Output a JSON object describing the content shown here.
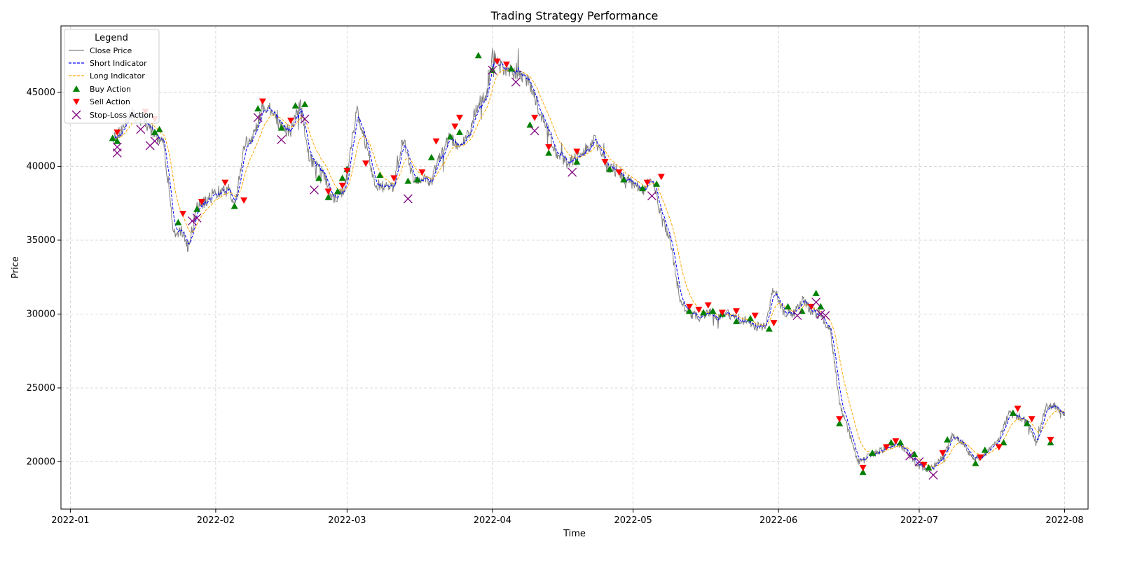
{
  "colors": {
    "close": "#808080",
    "short": "#0000ff",
    "long": "#ffa500",
    "buy": "#008000",
    "sell": "#ff0000",
    "stoploss": "#800080",
    "grid": "#cccccc"
  },
  "chart_data": {
    "type": "line",
    "title": "Trading Strategy Performance",
    "xlabel": "Time",
    "ylabel": "Price",
    "x_range": [
      "2021-12-30",
      "2022-08-06"
    ],
    "ylim": [
      16800,
      49500
    ],
    "x_ticks": [
      "2022-01-01",
      "2022-02-01",
      "2022-03-01",
      "2022-04-01",
      "2022-05-01",
      "2022-06-01",
      "2022-07-01",
      "2022-08-01"
    ],
    "x_tick_labels": [
      "2022-01",
      "2022-02",
      "2022-03",
      "2022-04",
      "2022-05",
      "2022-06",
      "2022-07",
      "2022-08"
    ],
    "y_ticks": [
      20000,
      25000,
      30000,
      35000,
      40000,
      45000
    ],
    "y_tick_labels": [
      "20000",
      "25000",
      "30000",
      "35000",
      "40000",
      "45000"
    ],
    "grid": true,
    "legend": {
      "title": "Legend",
      "placement": "top-left",
      "entries": [
        "Close Price",
        "Short Indicator",
        "Long Indicator",
        "Buy Action",
        "Sell Action",
        "Stop-Loss Action"
      ]
    },
    "price_path": [
      [
        "2022-01-10",
        41800
      ],
      [
        "2022-01-12",
        42500
      ],
      [
        "2022-01-14",
        43600
      ],
      [
        "2022-01-17",
        43000
      ],
      [
        "2022-01-19",
        42200
      ],
      [
        "2022-01-21",
        41400
      ],
      [
        "2022-01-23",
        35500
      ],
      [
        "2022-01-25",
        35600
      ],
      [
        "2022-01-26",
        34500
      ],
      [
        "2022-01-28",
        37200
      ],
      [
        "2022-02-01",
        38200
      ],
      [
        "2022-02-04",
        38500
      ],
      [
        "2022-02-05",
        37000
      ],
      [
        "2022-02-07",
        41400
      ],
      [
        "2022-02-09",
        42000
      ],
      [
        "2022-02-11",
        44000
      ],
      [
        "2022-02-13",
        43800
      ],
      [
        "2022-02-15",
        42600
      ],
      [
        "2022-02-17",
        42400
      ],
      [
        "2022-02-19",
        44300
      ],
      [
        "2022-02-21",
        40500
      ],
      [
        "2022-02-24",
        39500
      ],
      [
        "2022-02-26",
        37800
      ],
      [
        "2022-02-28",
        38200
      ],
      [
        "2022-03-01",
        39300
      ],
      [
        "2022-03-03",
        43800
      ],
      [
        "2022-03-05",
        41500
      ],
      [
        "2022-03-07",
        38800
      ],
      [
        "2022-03-09",
        38600
      ],
      [
        "2022-03-11",
        38700
      ],
      [
        "2022-03-13",
        42000
      ],
      [
        "2022-03-15",
        39200
      ],
      [
        "2022-03-17",
        39100
      ],
      [
        "2022-03-19",
        39000
      ],
      [
        "2022-03-21",
        40800
      ],
      [
        "2022-03-23",
        42000
      ],
      [
        "2022-03-25",
        41200
      ],
      [
        "2022-03-27",
        42300
      ],
      [
        "2022-03-29",
        44300
      ],
      [
        "2022-03-31",
        45000
      ],
      [
        "2022-04-01",
        47500
      ],
      [
        "2022-04-03",
        46600
      ],
      [
        "2022-04-05",
        46400
      ],
      [
        "2022-04-07",
        46200
      ],
      [
        "2022-04-09",
        45600
      ],
      [
        "2022-04-11",
        43800
      ],
      [
        "2022-04-13",
        42300
      ],
      [
        "2022-04-15",
        40600
      ],
      [
        "2022-04-17",
        40200
      ],
      [
        "2022-04-19",
        40500
      ],
      [
        "2022-04-21",
        41200
      ],
      [
        "2022-04-23",
        41800
      ],
      [
        "2022-04-25",
        40000
      ],
      [
        "2022-04-27",
        39800
      ],
      [
        "2022-04-29",
        39300
      ],
      [
        "2022-05-01",
        38800
      ],
      [
        "2022-05-03",
        38300
      ],
      [
        "2022-05-05",
        39300
      ],
      [
        "2022-05-07",
        36500
      ],
      [
        "2022-05-09",
        35000
      ],
      [
        "2022-05-11",
        31000
      ],
      [
        "2022-05-13",
        30000
      ],
      [
        "2022-05-15",
        29800
      ],
      [
        "2022-05-17",
        30200
      ],
      [
        "2022-05-19",
        29800
      ],
      [
        "2022-05-21",
        30100
      ],
      [
        "2022-05-23",
        29700
      ],
      [
        "2022-05-25",
        29600
      ],
      [
        "2022-05-27",
        29200
      ],
      [
        "2022-05-29",
        29100
      ],
      [
        "2022-05-31",
        31800
      ],
      [
        "2022-06-02",
        30200
      ],
      [
        "2022-06-04",
        29900
      ],
      [
        "2022-06-06",
        31000
      ],
      [
        "2022-06-08",
        30200
      ],
      [
        "2022-06-10",
        29900
      ],
      [
        "2022-06-12",
        29000
      ],
      [
        "2022-06-14",
        24000
      ],
      [
        "2022-06-16",
        22000
      ],
      [
        "2022-06-18",
        20000
      ],
      [
        "2022-06-20",
        20400
      ],
      [
        "2022-06-22",
        20600
      ],
      [
        "2022-06-24",
        21000
      ],
      [
        "2022-06-26",
        21200
      ],
      [
        "2022-06-28",
        20800
      ],
      [
        "2022-06-30",
        20000
      ],
      [
        "2022-07-02",
        19400
      ],
      [
        "2022-07-04",
        19600
      ],
      [
        "2022-07-06",
        20400
      ],
      [
        "2022-07-08",
        21800
      ],
      [
        "2022-07-10",
        21400
      ],
      [
        "2022-07-12",
        20400
      ],
      [
        "2022-07-14",
        20200
      ],
      [
        "2022-07-16",
        20800
      ],
      [
        "2022-07-18",
        21500
      ],
      [
        "2022-07-20",
        23200
      ],
      [
        "2022-07-22",
        23100
      ],
      [
        "2022-07-24",
        22700
      ],
      [
        "2022-07-26",
        21200
      ],
      [
        "2022-07-28",
        23700
      ],
      [
        "2022-07-30",
        23800
      ],
      [
        "2022-08-01",
        23100
      ]
    ],
    "buy_actions": [
      [
        "2022-01-10",
        41900
      ],
      [
        "2022-01-11",
        41700
      ],
      [
        "2022-01-19",
        42300
      ],
      [
        "2022-01-20",
        42500
      ],
      [
        "2022-01-24",
        36200
      ],
      [
        "2022-01-28",
        37100
      ],
      [
        "2022-02-05",
        37300
      ],
      [
        "2022-02-10",
        43900
      ],
      [
        "2022-02-15",
        42600
      ],
      [
        "2022-02-18",
        44100
      ],
      [
        "2022-02-20",
        44200
      ],
      [
        "2022-02-23",
        39200
      ],
      [
        "2022-02-25",
        37900
      ],
      [
        "2022-02-27",
        38300
      ],
      [
        "2022-02-28",
        39200
      ],
      [
        "2022-03-01",
        39800
      ],
      [
        "2022-03-08",
        39400
      ],
      [
        "2022-03-14",
        39000
      ],
      [
        "2022-03-16",
        39100
      ],
      [
        "2022-03-19",
        40600
      ],
      [
        "2022-03-23",
        42000
      ],
      [
        "2022-03-25",
        42300
      ],
      [
        "2022-03-29",
        47500
      ],
      [
        "2022-04-01",
        46500
      ],
      [
        "2022-04-05",
        46600
      ],
      [
        "2022-04-09",
        42800
      ],
      [
        "2022-04-13",
        40900
      ],
      [
        "2022-04-19",
        40300
      ],
      [
        "2022-04-26",
        39800
      ],
      [
        "2022-04-29",
        39100
      ],
      [
        "2022-05-03",
        38500
      ],
      [
        "2022-05-06",
        38800
      ],
      [
        "2022-05-13",
        30200
      ],
      [
        "2022-05-16",
        30100
      ],
      [
        "2022-05-18",
        30200
      ],
      [
        "2022-05-20",
        30000
      ],
      [
        "2022-05-23",
        29500
      ],
      [
        "2022-05-26",
        29700
      ],
      [
        "2022-05-30",
        29000
      ],
      [
        "2022-06-03",
        30500
      ],
      [
        "2022-06-06",
        30200
      ],
      [
        "2022-06-09",
        31400
      ],
      [
        "2022-06-10",
        30500
      ],
      [
        "2022-06-14",
        22600
      ],
      [
        "2022-06-19",
        19300
      ],
      [
        "2022-06-21",
        20600
      ],
      [
        "2022-06-25",
        21300
      ],
      [
        "2022-06-27",
        21300
      ],
      [
        "2022-06-30",
        20500
      ],
      [
        "2022-07-03",
        19600
      ],
      [
        "2022-07-07",
        21500
      ],
      [
        "2022-07-13",
        19900
      ],
      [
        "2022-07-15",
        20800
      ],
      [
        "2022-07-19",
        21300
      ],
      [
        "2022-07-21",
        23300
      ],
      [
        "2022-07-24",
        22600
      ],
      [
        "2022-07-29",
        21300
      ]
    ],
    "sell_actions": [
      [
        "2022-01-11",
        42300
      ],
      [
        "2022-01-17",
        43700
      ],
      [
        "2022-01-19",
        43200
      ],
      [
        "2022-01-25",
        36800
      ],
      [
        "2022-01-29",
        37600
      ],
      [
        "2022-02-03",
        38900
      ],
      [
        "2022-02-07",
        37700
      ],
      [
        "2022-02-11",
        44400
      ],
      [
        "2022-02-17",
        43100
      ],
      [
        "2022-02-25",
        38300
      ],
      [
        "2022-02-28",
        38700
      ],
      [
        "2022-03-01",
        39700
      ],
      [
        "2022-03-05",
        40200
      ],
      [
        "2022-03-11",
        39200
      ],
      [
        "2022-03-17",
        39600
      ],
      [
        "2022-03-20",
        41700
      ],
      [
        "2022-03-24",
        42700
      ],
      [
        "2022-03-25",
        43300
      ],
      [
        "2022-04-02",
        47100
      ],
      [
        "2022-04-04",
        46900
      ],
      [
        "2022-04-10",
        43300
      ],
      [
        "2022-04-13",
        41300
      ],
      [
        "2022-04-19",
        41000
      ],
      [
        "2022-04-25",
        40300
      ],
      [
        "2022-04-28",
        39600
      ],
      [
        "2022-05-04",
        38900
      ],
      [
        "2022-05-07",
        39300
      ],
      [
        "2022-05-13",
        30500
      ],
      [
        "2022-05-15",
        30300
      ],
      [
        "2022-05-17",
        30600
      ],
      [
        "2022-05-20",
        30100
      ],
      [
        "2022-05-23",
        30200
      ],
      [
        "2022-05-27",
        29900
      ],
      [
        "2022-05-31",
        29400
      ],
      [
        "2022-06-08",
        30500
      ],
      [
        "2022-06-14",
        22900
      ],
      [
        "2022-06-19",
        19600
      ],
      [
        "2022-06-24",
        21000
      ],
      [
        "2022-06-26",
        21400
      ],
      [
        "2022-07-02",
        19800
      ],
      [
        "2022-07-06",
        20600
      ],
      [
        "2022-07-14",
        20300
      ],
      [
        "2022-07-18",
        21000
      ],
      [
        "2022-07-22",
        23600
      ],
      [
        "2022-07-25",
        22900
      ],
      [
        "2022-07-29",
        21500
      ]
    ],
    "stoploss_actions": [
      [
        "2022-01-11",
        40900
      ],
      [
        "2022-01-11",
        41300
      ],
      [
        "2022-01-16",
        42500
      ],
      [
        "2022-01-18",
        41400
      ],
      [
        "2022-01-19",
        41700
      ],
      [
        "2022-01-27",
        36300
      ],
      [
        "2022-01-28",
        36500
      ],
      [
        "2022-02-10",
        43300
      ],
      [
        "2022-02-15",
        41800
      ],
      [
        "2022-02-20",
        43200
      ],
      [
        "2022-02-22",
        38400
      ],
      [
        "2022-03-14",
        37800
      ],
      [
        "2022-04-01",
        46500
      ],
      [
        "2022-04-06",
        45700
      ],
      [
        "2022-04-10",
        42400
      ],
      [
        "2022-04-18",
        39600
      ],
      [
        "2022-05-05",
        38000
      ],
      [
        "2022-06-05",
        29900
      ],
      [
        "2022-06-09",
        30800
      ],
      [
        "2022-06-10",
        30000
      ],
      [
        "2022-06-11",
        29900
      ],
      [
        "2022-06-29",
        20400
      ],
      [
        "2022-07-01",
        20000
      ],
      [
        "2022-07-04",
        19100
      ]
    ]
  }
}
